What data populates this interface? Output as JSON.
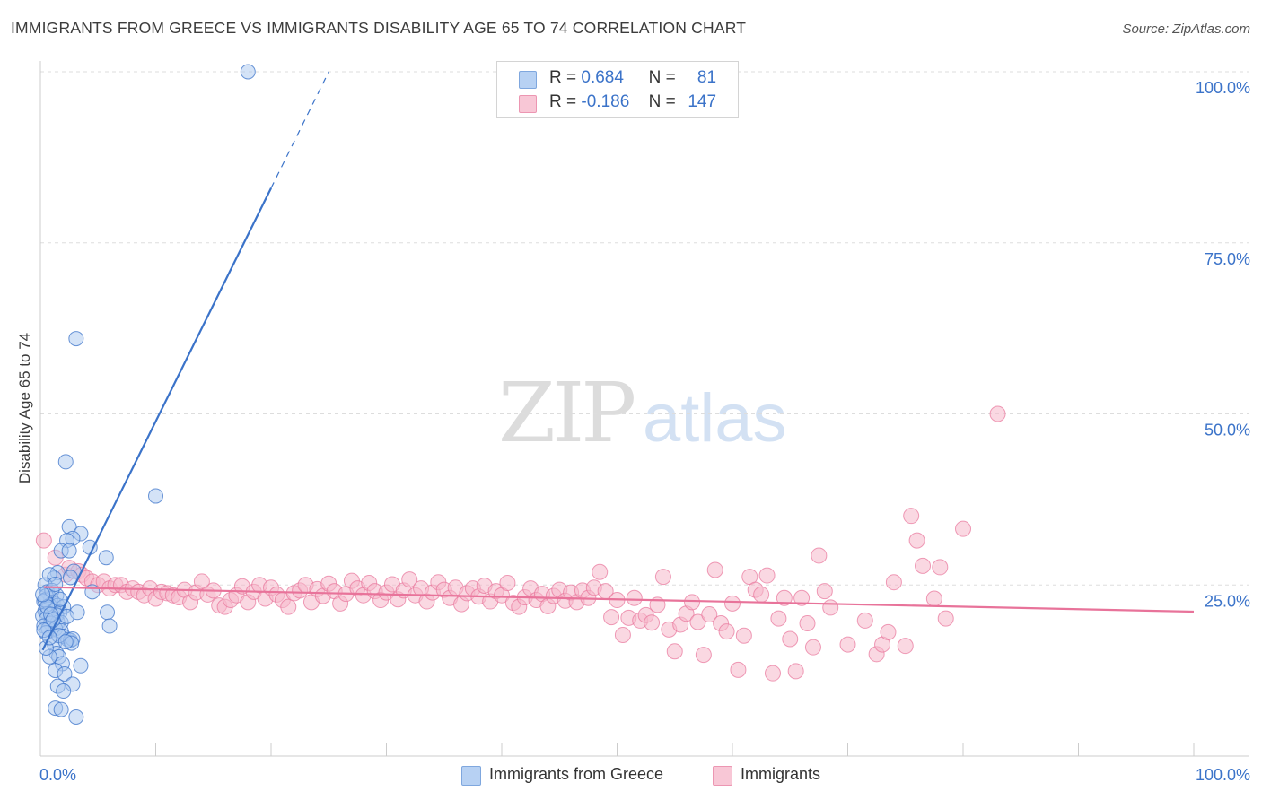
{
  "chart_data": {
    "type": "scatter",
    "title": "IMMIGRANTS FROM GREECE VS IMMIGRANTS DISABILITY AGE 65 TO 74 CORRELATION CHART",
    "source": "Source: ZipAtlas.com",
    "ylabel": "Disability Age 65 to 74",
    "xlabel": "",
    "xlim": [
      0,
      100
    ],
    "ylim": [
      0,
      100
    ],
    "x_tick_labels": [
      "0.0%",
      "100.0%"
    ],
    "y_tick_labels": [
      "100.0%",
      "75.0%",
      "50.0%",
      "25.0%"
    ],
    "y_ticks": [
      100,
      75,
      50,
      25
    ],
    "grid": true,
    "legend_position": "top-center",
    "watermark": "ZIPatlas",
    "colors": {
      "blue": "#3b73c9",
      "blue_fill": "#a9c8ef",
      "pink": "#e8739a",
      "pink_fill": "#f6b8cb",
      "grid": "#dddddd",
      "axis": "#cccccc"
    },
    "stats": [
      {
        "r_label": "R =",
        "r_value": "0.684",
        "n_label": "N =",
        "n_value": "81"
      },
      {
        "r_label": "R =",
        "r_value": "-0.186",
        "n_label": "N =",
        "n_value": "147"
      }
    ],
    "series": [
      {
        "name": "Immigrants from Greece",
        "color": "blue",
        "trend": {
          "x0": 0.2,
          "y0": 15.5,
          "x1": 20,
          "y1": 83,
          "dash_x1": 25,
          "dash_y1": 100
        },
        "points": [
          [
            18,
            100
          ],
          [
            3.1,
            61
          ],
          [
            2.2,
            43
          ],
          [
            10,
            38
          ],
          [
            2.5,
            33.5
          ],
          [
            3.5,
            32.5
          ],
          [
            2.8,
            31.8
          ],
          [
            2.3,
            31.5
          ],
          [
            1.8,
            30
          ],
          [
            4.3,
            30.5
          ],
          [
            2.5,
            30
          ],
          [
            5.7,
            29
          ],
          [
            2.9,
            27
          ],
          [
            1.5,
            26.8
          ],
          [
            2.6,
            26.1
          ],
          [
            1.2,
            26
          ],
          [
            0.8,
            26.5
          ],
          [
            0.4,
            25
          ],
          [
            4.5,
            24
          ],
          [
            0.6,
            24
          ],
          [
            1.4,
            23.5
          ],
          [
            0.9,
            23
          ],
          [
            0.5,
            23.4
          ],
          [
            0.3,
            22.6
          ],
          [
            1.1,
            22.5
          ],
          [
            0.8,
            22
          ],
          [
            1.5,
            22
          ],
          [
            2.0,
            21.8
          ],
          [
            0.7,
            21.5
          ],
          [
            0.4,
            21.2
          ],
          [
            1.2,
            21.2
          ],
          [
            0.6,
            20.8
          ],
          [
            1.7,
            21
          ],
          [
            1.4,
            20.6
          ],
          [
            3.2,
            21
          ],
          [
            5.8,
            21
          ],
          [
            0.2,
            20.5
          ],
          [
            1.0,
            20.2
          ],
          [
            0.5,
            20
          ],
          [
            1.5,
            19.5
          ],
          [
            0.9,
            19.4
          ],
          [
            1.8,
            19.5
          ],
          [
            0.3,
            19
          ],
          [
            0.7,
            18.6
          ],
          [
            1.3,
            18.6
          ],
          [
            1.8,
            18.3
          ],
          [
            0.5,
            18
          ],
          [
            6.0,
            19
          ],
          [
            2.0,
            17.5
          ],
          [
            2.4,
            17
          ],
          [
            2.6,
            16.9
          ],
          [
            2.8,
            17.1
          ],
          [
            2.7,
            16.5
          ],
          [
            1.2,
            16.4
          ],
          [
            1.4,
            15
          ],
          [
            1.6,
            14.5
          ],
          [
            0.8,
            14.5
          ],
          [
            1.9,
            13.5
          ],
          [
            3.5,
            13.2
          ],
          [
            1.3,
            12.5
          ],
          [
            2.1,
            12
          ],
          [
            2.8,
            10.5
          ],
          [
            1.5,
            10.2
          ],
          [
            2.0,
            9.5
          ],
          [
            1.3,
            7
          ],
          [
            1.8,
            6.8
          ],
          [
            3.1,
            5.7
          ],
          [
            0.4,
            22.8
          ],
          [
            0.6,
            21.8
          ],
          [
            0.9,
            20.7
          ],
          [
            1.1,
            19.9
          ],
          [
            0.3,
            18.4
          ],
          [
            1.6,
            17.6
          ],
          [
            2.2,
            16.7
          ],
          [
            0.5,
            15.8
          ],
          [
            1.0,
            24.2
          ],
          [
            1.3,
            25.1
          ],
          [
            0.2,
            23.6
          ],
          [
            1.7,
            22.9
          ],
          [
            2.3,
            20.4
          ],
          [
            0.8,
            17.3
          ]
        ]
      },
      {
        "name": "Immigrants",
        "color": "pink",
        "trend": {
          "x0": 0.3,
          "y0": 24.7,
          "x1": 100,
          "y1": 21.1
        },
        "points": [
          [
            0.3,
            31.5
          ],
          [
            1.3,
            29
          ],
          [
            2.2,
            26.5
          ],
          [
            2.5,
            27.5
          ],
          [
            3.3,
            27
          ],
          [
            3.6,
            26.5
          ],
          [
            4.0,
            26
          ],
          [
            4.5,
            25.5
          ],
          [
            5.0,
            25
          ],
          [
            5.5,
            25.5
          ],
          [
            6.0,
            24.5
          ],
          [
            6.5,
            25
          ],
          [
            7.0,
            25
          ],
          [
            7.5,
            24
          ],
          [
            8.0,
            24.5
          ],
          [
            8.5,
            24
          ],
          [
            9.0,
            23.5
          ],
          [
            9.5,
            24.5
          ],
          [
            10.0,
            23
          ],
          [
            10.5,
            24
          ],
          [
            11.0,
            23.8
          ],
          [
            11.5,
            23.5
          ],
          [
            12.0,
            23.2
          ],
          [
            12.5,
            24.3
          ],
          [
            13.0,
            22.5
          ],
          [
            13.5,
            23.9
          ],
          [
            14.0,
            25.5
          ],
          [
            14.5,
            23.6
          ],
          [
            15.0,
            24.2
          ],
          [
            15.5,
            22
          ],
          [
            16.0,
            21.8
          ],
          [
            16.5,
            22.8
          ],
          [
            17.0,
            23.5
          ],
          [
            17.5,
            24.8
          ],
          [
            18.0,
            22.5
          ],
          [
            18.5,
            24
          ],
          [
            19.0,
            25
          ],
          [
            19.5,
            23
          ],
          [
            20.0,
            24.6
          ],
          [
            20.5,
            23.6
          ],
          [
            21.0,
            22.8
          ],
          [
            21.5,
            21.8
          ],
          [
            22.0,
            23.8
          ],
          [
            22.5,
            24.2
          ],
          [
            23.0,
            25
          ],
          [
            23.5,
            22.5
          ],
          [
            24.0,
            24.4
          ],
          [
            24.5,
            23.4
          ],
          [
            25.0,
            25.2
          ],
          [
            25.5,
            24.1
          ],
          [
            26.0,
            22.3
          ],
          [
            26.5,
            23.7
          ],
          [
            27.0,
            25.6
          ],
          [
            27.5,
            24.5
          ],
          [
            28.0,
            23.5
          ],
          [
            28.5,
            25.3
          ],
          [
            29.0,
            24.1
          ],
          [
            29.5,
            22.8
          ],
          [
            30.0,
            23.9
          ],
          [
            30.5,
            25.1
          ],
          [
            31.0,
            22.9
          ],
          [
            31.5,
            24.2
          ],
          [
            32.0,
            25.8
          ],
          [
            32.5,
            23.5
          ],
          [
            33.0,
            24.5
          ],
          [
            33.5,
            22.6
          ],
          [
            34.0,
            23.9
          ],
          [
            34.5,
            25.4
          ],
          [
            35.0,
            24.3
          ],
          [
            35.5,
            23.1
          ],
          [
            36.0,
            24.6
          ],
          [
            36.5,
            22.2
          ],
          [
            37.0,
            23.8
          ],
          [
            37.5,
            24.5
          ],
          [
            38.0,
            23.3
          ],
          [
            38.5,
            24.9
          ],
          [
            39.0,
            22.6
          ],
          [
            39.5,
            24.1
          ],
          [
            40.0,
            23.5
          ],
          [
            40.5,
            25.3
          ],
          [
            41.0,
            22.4
          ],
          [
            41.5,
            21.8
          ],
          [
            42.0,
            23.2
          ],
          [
            42.5,
            24.5
          ],
          [
            43.0,
            22.8
          ],
          [
            43.5,
            23.7
          ],
          [
            44.0,
            21.9
          ],
          [
            44.5,
            23.4
          ],
          [
            45.0,
            24.3
          ],
          [
            45.5,
            22.7
          ],
          [
            46.0,
            23.9
          ],
          [
            46.5,
            22.5
          ],
          [
            47.0,
            24.2
          ],
          [
            47.5,
            23.1
          ],
          [
            48.0,
            24.6
          ],
          [
            48.5,
            26.9
          ],
          [
            49.0,
            24.1
          ],
          [
            49.5,
            20.3
          ],
          [
            50.0,
            22.8
          ],
          [
            50.5,
            17.7
          ],
          [
            51.0,
            20.2
          ],
          [
            51.5,
            23.1
          ],
          [
            52.0,
            19.8
          ],
          [
            52.5,
            20.6
          ],
          [
            53.0,
            19.5
          ],
          [
            53.5,
            22.1
          ],
          [
            54.0,
            26.2
          ],
          [
            54.5,
            18.5
          ],
          [
            55.0,
            15.3
          ],
          [
            55.5,
            19.2
          ],
          [
            56.0,
            20.8
          ],
          [
            56.5,
            22.5
          ],
          [
            57.0,
            19.6
          ],
          [
            57.5,
            14.8
          ],
          [
            58.0,
            20.7
          ],
          [
            58.5,
            27.2
          ],
          [
            59.0,
            19.4
          ],
          [
            59.5,
            18.2
          ],
          [
            60.0,
            22.3
          ],
          [
            60.5,
            12.6
          ],
          [
            61.0,
            17.6
          ],
          [
            61.5,
            26.2
          ],
          [
            62.0,
            24.3
          ],
          [
            62.5,
            23.6
          ],
          [
            63.0,
            26.4
          ],
          [
            63.5,
            12.1
          ],
          [
            64.0,
            20.1
          ],
          [
            64.5,
            23.1
          ],
          [
            65.0,
            17.1
          ],
          [
            65.5,
            12.4
          ],
          [
            66.0,
            23.1
          ],
          [
            66.5,
            19.4
          ],
          [
            67.0,
            15.9
          ],
          [
            67.5,
            29.3
          ],
          [
            68.0,
            24.1
          ],
          [
            68.5,
            21.7
          ],
          [
            70.0,
            16.3
          ],
          [
            71.5,
            19.8
          ],
          [
            72.5,
            14.9
          ],
          [
            73.0,
            16.3
          ],
          [
            73.5,
            18.1
          ],
          [
            74.0,
            25.4
          ],
          [
            75.0,
            16.1
          ],
          [
            75.5,
            35.1
          ],
          [
            76.0,
            31.5
          ],
          [
            76.5,
            27.8
          ],
          [
            77.5,
            23.0
          ],
          [
            78.0,
            27.6
          ],
          [
            78.5,
            20.1
          ],
          [
            80.0,
            33.2
          ],
          [
            83.0,
            50.0
          ]
        ]
      }
    ]
  }
}
